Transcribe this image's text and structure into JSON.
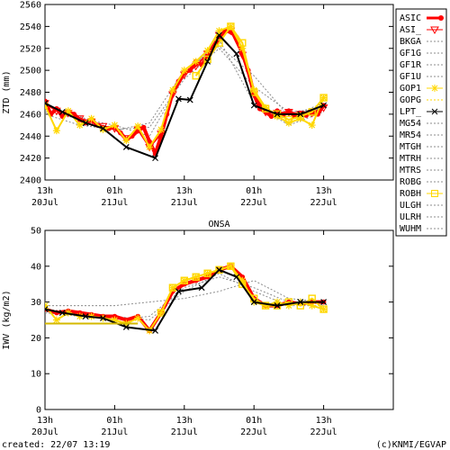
{
  "chart_data": [
    {
      "type": "line",
      "title": "",
      "ylabel": "ZTD (mm)",
      "xlabel": "",
      "xlim": [
        0,
        60
      ],
      "ylim": [
        2400,
        2560
      ],
      "yticks": [
        2400,
        2420,
        2440,
        2460,
        2480,
        2500,
        2520,
        2540,
        2560
      ],
      "xticks": [
        {
          "t": 0,
          "l1": "13h",
          "l2": "20Jul"
        },
        {
          "t": 12,
          "l1": "01h",
          "l2": "21Jul"
        },
        {
          "t": 24,
          "l1": "13h",
          "l2": "21Jul"
        },
        {
          "t": 36,
          "l1": "01h",
          "l2": "22Jul"
        },
        {
          "t": 48,
          "l1": "13h",
          "l2": "22Jul"
        }
      ],
      "series": [
        {
          "name": "ASIC",
          "color": "#ff0000",
          "x": [
            0,
            1,
            2,
            3,
            4,
            5,
            6,
            7,
            8,
            9,
            10,
            11,
            12,
            13,
            14,
            15,
            16,
            17,
            18,
            19,
            20,
            21,
            22,
            23,
            24,
            25,
            26,
            27,
            28,
            29,
            30,
            31,
            32,
            33,
            34,
            35,
            36,
            37,
            38,
            39,
            40,
            41,
            42,
            43,
            44,
            45,
            46,
            47,
            48
          ],
          "y": [
            2472,
            2460,
            2465,
            2458,
            2462,
            2460,
            2455,
            2452,
            2455,
            2450,
            2448,
            2447,
            2448,
            2443,
            2437,
            2440,
            2445,
            2448,
            2435,
            2424,
            2440,
            2460,
            2480,
            2490,
            2498,
            2500,
            2508,
            2505,
            2512,
            2520,
            2530,
            2536,
            2535,
            2530,
            2515,
            2500,
            2478,
            2465,
            2462,
            2458,
            2463,
            2459,
            2463,
            2458,
            2461,
            2459,
            2462,
            2460,
            2468
          ]
        },
        {
          "name": "ASI_",
          "color": "#ff0000",
          "x": [
            0,
            2,
            4,
            6,
            8,
            10,
            12,
            14,
            16,
            18,
            20,
            22,
            24,
            26,
            28,
            30,
            32,
            34,
            36,
            38,
            40,
            42,
            44,
            46,
            48
          ],
          "y": [
            2470,
            2463,
            2461,
            2456,
            2453,
            2449,
            2447,
            2438,
            2446,
            2430,
            2442,
            2478,
            2496,
            2504,
            2515,
            2532,
            2536,
            2514,
            2478,
            2462,
            2461,
            2462,
            2460,
            2461,
            2466
          ]
        },
        {
          "name": "GOP1",
          "color": "#ffd700",
          "x": [
            0,
            2,
            4,
            6,
            8,
            10,
            12,
            14,
            16,
            18,
            20,
            22,
            24,
            26,
            28,
            30,
            32,
            34,
            36,
            38,
            40,
            42,
            44,
            46,
            48
          ],
          "y": [
            2468,
            2445,
            2463,
            2450,
            2456,
            2446,
            2450,
            2436,
            2449,
            2430,
            2446,
            2482,
            2500,
            2508,
            2518,
            2536,
            2540,
            2520,
            2482,
            2466,
            2458,
            2452,
            2456,
            2450,
            2475
          ]
        },
        {
          "name": "ROBH",
          "color": "#ffd700",
          "x": [
            26,
            28,
            30,
            32,
            34,
            36,
            38,
            40,
            42,
            44,
            46,
            48
          ],
          "y": [
            2495,
            2510,
            2525,
            2540,
            2525,
            2480,
            2465,
            2460,
            2455,
            2458,
            2462,
            2475
          ]
        },
        {
          "name": "LPT_",
          "color": "#000000",
          "x": [
            0,
            3,
            7,
            10,
            14,
            19,
            23,
            25,
            28,
            30,
            33,
            36,
            40,
            44,
            48
          ],
          "y": [
            2470,
            2462,
            2452,
            2447,
            2430,
            2420,
            2474,
            2473,
            2508,
            2532,
            2515,
            2468,
            2460,
            2460,
            2468
          ]
        },
        {
          "name": "BKGA",
          "color": "#8c8c8c",
          "x": [
            0,
            6,
            12,
            18,
            24,
            30,
            36,
            42,
            48
          ],
          "y": [
            2465,
            2458,
            2445,
            2452,
            2500,
            2522,
            2495,
            2458,
            2470
          ]
        },
        {
          "name": "GF1G",
          "color": "#8c8c8c",
          "x": [
            0,
            6,
            12,
            18,
            24,
            30,
            36,
            42,
            48
          ],
          "y": [
            2462,
            2456,
            2450,
            2440,
            2495,
            2528,
            2470,
            2450,
            2462
          ]
        },
        {
          "name": "MTRH",
          "color": "#8c8c8c",
          "x": [
            0,
            6,
            12,
            18,
            24,
            30,
            36,
            42,
            48
          ],
          "y": [
            2460,
            2450,
            2446,
            2448,
            2492,
            2520,
            2485,
            2462,
            2465
          ]
        }
      ],
      "legend": [
        {
          "name": "ASIC",
          "color": "#ff0000",
          "marker": "dot"
        },
        {
          "name": "ASI_",
          "color": "#ff0000",
          "marker": "tri"
        },
        {
          "name": "BKGA",
          "color": "#8c8c8c",
          "marker": "dash"
        },
        {
          "name": "GF1G",
          "color": "#8c8c8c",
          "marker": "dash"
        },
        {
          "name": "GF1R",
          "color": "#8c8c8c",
          "marker": "dash"
        },
        {
          "name": "GF1U",
          "color": "#8c8c8c",
          "marker": "dash"
        },
        {
          "name": "GOP1",
          "color": "#ffd700",
          "marker": "star"
        },
        {
          "name": "GOPG",
          "color": "#ffd700",
          "marker": "dash"
        },
        {
          "name": "LPT_",
          "color": "#000000",
          "marker": "x"
        },
        {
          "name": "MG54",
          "color": "#8c8c8c",
          "marker": "dash"
        },
        {
          "name": "MR54",
          "color": "#8c8c8c",
          "marker": "dash"
        },
        {
          "name": "MTGH",
          "color": "#8c8c8c",
          "marker": "dash"
        },
        {
          "name": "MTRH",
          "color": "#8c8c8c",
          "marker": "dash"
        },
        {
          "name": "MTRS",
          "color": "#8c8c8c",
          "marker": "dash"
        },
        {
          "name": "ROBG",
          "color": "#8c8c8c",
          "marker": "dash"
        },
        {
          "name": "ROBH",
          "color": "#ffd700",
          "marker": "square"
        },
        {
          "name": "ULGH",
          "color": "#8c8c8c",
          "marker": "dash"
        },
        {
          "name": "ULRH",
          "color": "#8c8c8c",
          "marker": "dash"
        },
        {
          "name": "WUHM",
          "color": "#8c8c8c",
          "marker": "dash"
        }
      ],
      "legend_position": "right"
    },
    {
      "type": "line",
      "title": "ONSA",
      "ylabel": "IWV (kg/m2)",
      "xlabel": "",
      "xlim": [
        0,
        60
      ],
      "ylim": [
        0,
        50
      ],
      "yticks": [
        0,
        10,
        20,
        30,
        40,
        50
      ],
      "xticks": [
        {
          "t": 0,
          "l1": "13h",
          "l2": "20Jul"
        },
        {
          "t": 12,
          "l1": "01h",
          "l2": "21Jul"
        },
        {
          "t": 24,
          "l1": "13h",
          "l2": "21Jul"
        },
        {
          "t": 36,
          "l1": "01h",
          "l2": "22Jul"
        },
        {
          "t": 48,
          "l1": "13h",
          "l2": "22Jul"
        }
      ],
      "series": [
        {
          "name": "ASIC",
          "color": "#ff0000",
          "x": [
            0,
            2,
            4,
            6,
            8,
            10,
            12,
            14,
            16,
            18,
            20,
            22,
            24,
            26,
            28,
            30,
            32,
            34,
            36,
            38,
            40,
            42,
            44,
            46,
            48
          ],
          "y": [
            28,
            27,
            27.5,
            27,
            26.5,
            26,
            26,
            25,
            26,
            22,
            27,
            33,
            35,
            36,
            37,
            39,
            40,
            37,
            31,
            29,
            29,
            30,
            29.5,
            30,
            30
          ]
        },
        {
          "name": "GOP1",
          "color": "#ffd700",
          "x": [
            0,
            2,
            4,
            6,
            8,
            10,
            12,
            14,
            16,
            18,
            20,
            22,
            24,
            26,
            28,
            30,
            32,
            34,
            36,
            38,
            40,
            42,
            44,
            46,
            48
          ],
          "y": [
            29,
            25,
            27,
            26,
            26,
            25.5,
            25,
            24,
            25.5,
            22,
            27,
            34,
            36,
            37,
            38,
            39,
            40,
            36,
            30,
            29,
            30,
            29,
            30,
            29,
            28
          ]
        },
        {
          "name": "ROBH",
          "color": "#ffd700",
          "x": [
            20,
            22,
            24,
            26,
            28,
            30,
            32,
            34,
            36,
            38,
            40,
            42,
            44,
            46,
            48
          ],
          "y": [
            27,
            34,
            36,
            37,
            38,
            39,
            40,
            35,
            31,
            29,
            29,
            30,
            29,
            31,
            28
          ]
        },
        {
          "name": "LPT_",
          "color": "#000000",
          "x": [
            0,
            3,
            7,
            10,
            14,
            19,
            23,
            27,
            30,
            33,
            36,
            40,
            44,
            48
          ],
          "y": [
            28,
            27,
            26,
            25.5,
            23,
            22,
            33,
            34,
            39,
            37,
            30,
            29,
            30,
            30
          ]
        },
        {
          "name": "GOPG",
          "color": "#d4b800",
          "x": [
            0,
            4,
            8,
            12,
            16
          ],
          "y": [
            24,
            24,
            24,
            24,
            24
          ]
        },
        {
          "name": "BKGA",
          "color": "#8c8c8c",
          "x": [
            0,
            6,
            12,
            18,
            24,
            30,
            36,
            42,
            48
          ],
          "y": [
            28,
            27,
            25,
            26,
            34,
            37,
            34,
            30,
            30
          ]
        },
        {
          "name": "GF1G",
          "color": "#8c8c8c",
          "x": [
            0,
            6,
            12,
            18,
            24,
            30,
            36,
            42,
            48
          ],
          "y": [
            29,
            29,
            29,
            30,
            31,
            33,
            36,
            31,
            30
          ]
        },
        {
          "name": "MTRH",
          "color": "#8c8c8c",
          "x": [
            0,
            6,
            12,
            18,
            24,
            30,
            36,
            42,
            48
          ],
          "y": [
            27,
            26,
            26,
            25,
            33,
            38,
            33,
            29,
            29
          ]
        }
      ]
    }
  ],
  "footer": {
    "created": "created: 22/07 13:19",
    "credit": "(c)KNMI/EGVAP"
  }
}
